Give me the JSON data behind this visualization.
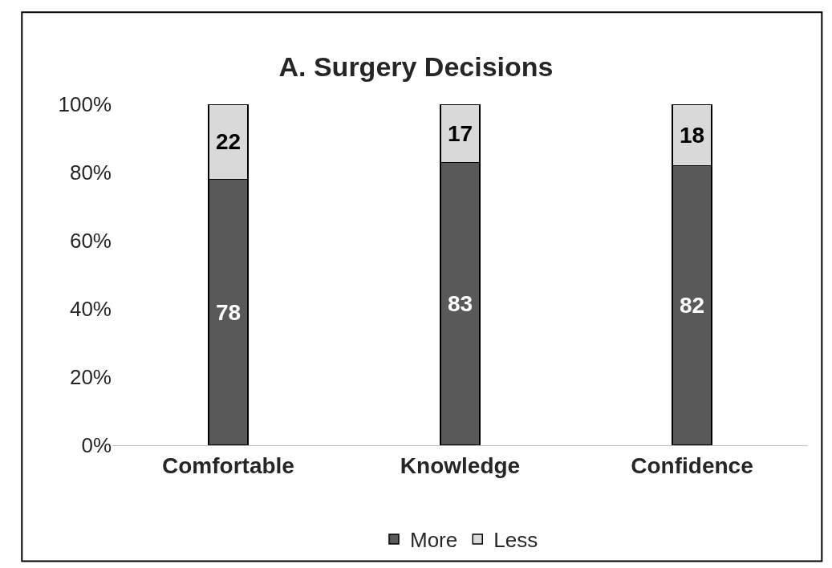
{
  "chart_data": {
    "type": "bar",
    "title": "A. Surgery Decisions",
    "categories": [
      "Comfortable",
      "Knowledge",
      "Confidence"
    ],
    "stacked": true,
    "series": [
      {
        "name": "More",
        "color": "#595959",
        "values": [
          78,
          83,
          82
        ]
      },
      {
        "name": "Less",
        "color": "#d9d9d9",
        "values": [
          22,
          17,
          18
        ]
      }
    ],
    "ylim": [
      0,
      100
    ],
    "yticks": [
      {
        "value": 0,
        "label": "0%"
      },
      {
        "value": 20,
        "label": "20%"
      },
      {
        "value": 40,
        "label": "40%"
      },
      {
        "value": 60,
        "label": "60%"
      },
      {
        "value": 80,
        "label": "80%"
      },
      {
        "value": 100,
        "label": "100%"
      }
    ],
    "data_labels": true,
    "legend": "bottom"
  }
}
